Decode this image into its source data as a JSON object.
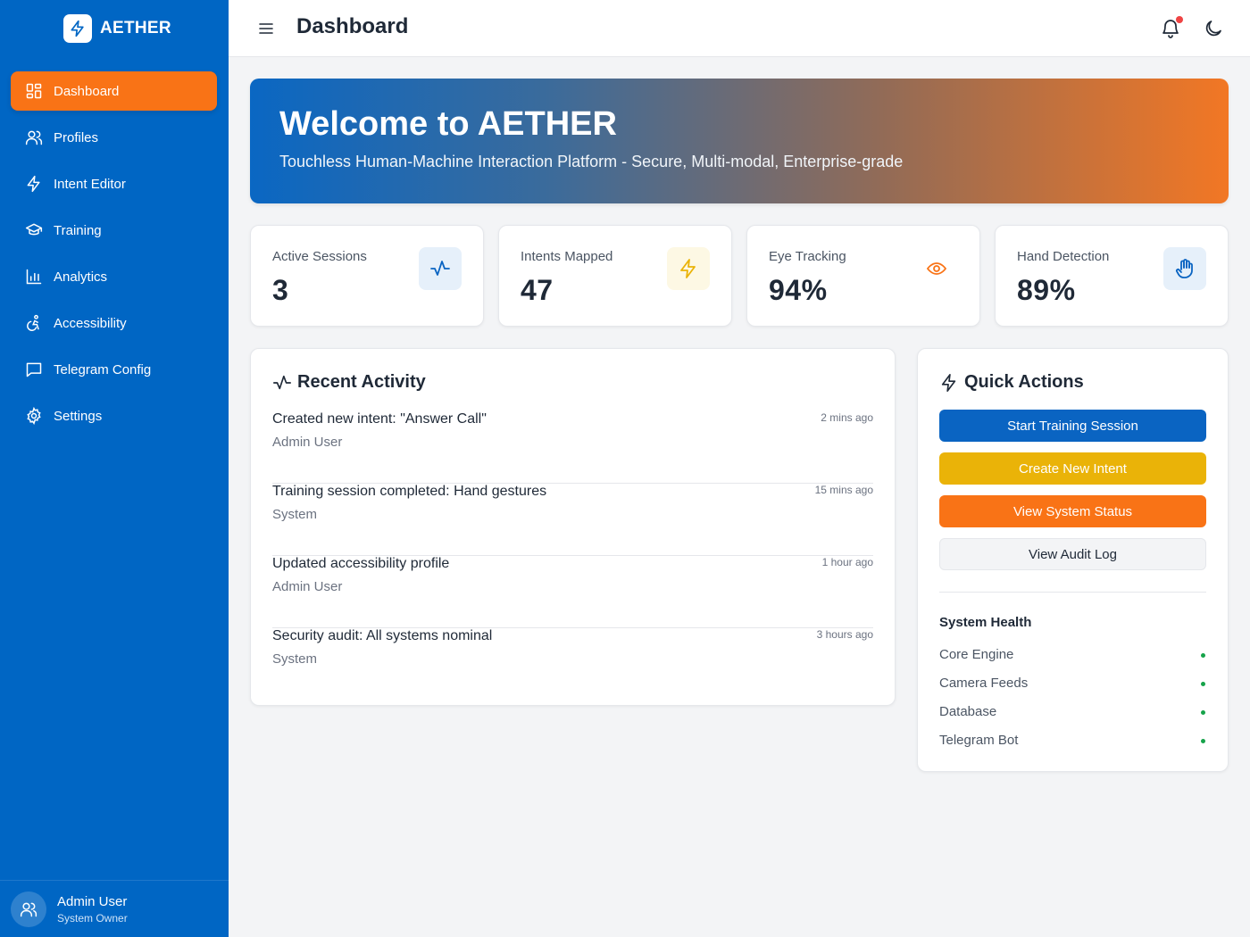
{
  "brand": {
    "name": "AETHER",
    "logo_icon": "bolt-icon"
  },
  "sidebar": {
    "items": [
      {
        "label": "Dashboard",
        "icon": "dashboard-icon",
        "active": true
      },
      {
        "label": "Profiles",
        "icon": "users-icon"
      },
      {
        "label": "Intent Editor",
        "icon": "bolt-icon"
      },
      {
        "label": "Training",
        "icon": "graduation-cap-icon"
      },
      {
        "label": "Analytics",
        "icon": "bar-chart-icon"
      },
      {
        "label": "Accessibility",
        "icon": "accessibility-icon"
      },
      {
        "label": "Telegram Config",
        "icon": "message-square-icon"
      },
      {
        "label": "Settings",
        "icon": "gear-icon"
      }
    ],
    "user": {
      "name": "Admin User",
      "role": "System Owner"
    }
  },
  "header": {
    "title": "Dashboard",
    "notification_indicator": true
  },
  "hero": {
    "title": "Welcome to AETHER",
    "subtitle": "Touchless Human-Machine Interaction Platform - Secure, Multi-modal, Enterprise-grade"
  },
  "stats": [
    {
      "label": "Active Sessions",
      "value": "3",
      "icon": "activity-icon",
      "color": "#0a64c2",
      "bg": "#e6f0fa"
    },
    {
      "label": "Intents Mapped",
      "value": "47",
      "icon": "bolt-icon",
      "color": "#eab308",
      "bg": "#fdf8e4"
    },
    {
      "label": "Eye Tracking",
      "value": "94%",
      "icon": "eye-icon",
      "color": "#f97316",
      "bg": "#ffffff"
    },
    {
      "label": "Hand Detection",
      "value": "89%",
      "icon": "hand-icon",
      "color": "#0a64c2",
      "bg": "#e6f0fa"
    }
  ],
  "activity": {
    "title": "Recent Activity",
    "items": [
      {
        "title": "Created new intent: \"Answer Call\"",
        "user": "Admin User",
        "time": "2 mins ago"
      },
      {
        "title": "Training session completed: Hand gestures",
        "user": "System",
        "time": "15 mins ago"
      },
      {
        "title": "Updated accessibility profile",
        "user": "Admin User",
        "time": "1 hour ago"
      },
      {
        "title": "Security audit: All systems nominal",
        "user": "System",
        "time": "3 hours ago"
      }
    ]
  },
  "quick_actions": {
    "title": "Quick Actions",
    "buttons": [
      {
        "label": "Start Training Session",
        "style": "blue"
      },
      {
        "label": "Create New Intent",
        "style": "yellow"
      },
      {
        "label": "View System Status",
        "style": "orange"
      },
      {
        "label": "View Audit Log",
        "style": "gray"
      }
    ],
    "health_title": "System Health",
    "health": [
      {
        "name": "Core Engine",
        "status_color": "#16a34a"
      },
      {
        "name": "Camera Feeds",
        "status_color": "#16a34a"
      },
      {
        "name": "Database",
        "status_color": "#16a34a"
      },
      {
        "name": "Telegram Bot",
        "status_color": "#16a34a"
      }
    ]
  },
  "colors": {
    "sidebar": "#0066c4",
    "accent": "#f97316",
    "primary": "#0a64c2",
    "warning": "#eab308",
    "success": "#16a34a"
  }
}
